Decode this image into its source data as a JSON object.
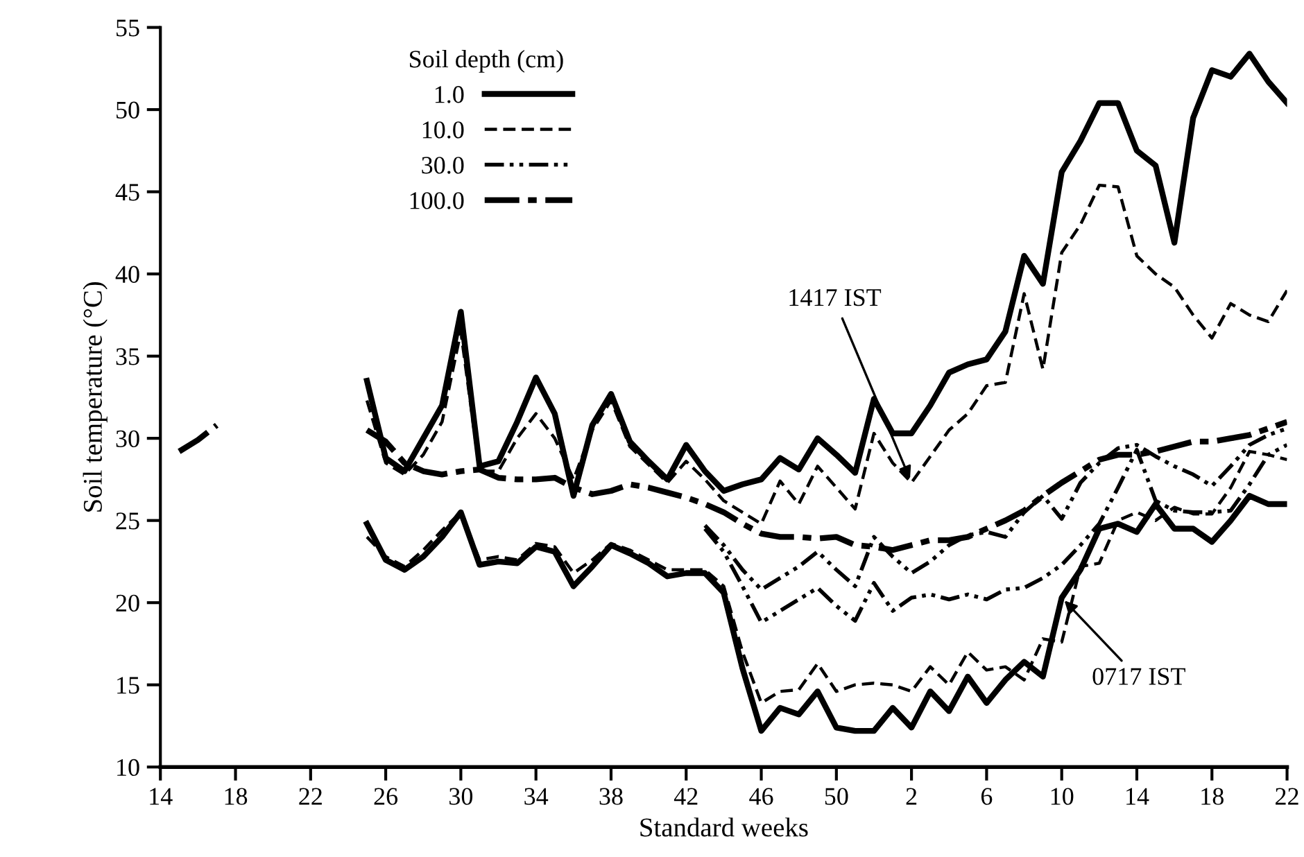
{
  "chart_data": {
    "type": "line",
    "xlabel": "Standard weeks",
    "ylabel": "Soil temperature (°C)",
    "legend_title": "Soil depth (cm)",
    "categories": [
      "14",
      null,
      null,
      null,
      "18",
      null,
      null,
      null,
      "22",
      null,
      null,
      null,
      "26",
      null,
      null,
      null,
      "30",
      null,
      null,
      null,
      "34",
      null,
      null,
      null,
      "38",
      null,
      null,
      null,
      "42",
      null,
      null,
      null,
      "46",
      null,
      null,
      null,
      "50",
      null,
      null,
      null,
      "2",
      null,
      null,
      null,
      "6",
      null,
      null,
      null,
      "10",
      null,
      null,
      null,
      "14",
      null,
      null,
      null,
      "18",
      null,
      null,
      null,
      "22"
    ],
    "ylim": [
      10,
      55
    ],
    "yticks": [
      10,
      15,
      20,
      25,
      30,
      35,
      40,
      45,
      50,
      55
    ],
    "grid": false,
    "legend": "top left",
    "marker": "none",
    "series": [
      {
        "name": "1.0",
        "color": "#000000",
        "line_style": "solid",
        "values": [
          null,
          null,
          null,
          null,
          null,
          null,
          null,
          null,
          null,
          null,
          null,
          33.5,
          28.8,
          28,
          30,
          32,
          37.7,
          28.3,
          28.6,
          31,
          33.7,
          31.5,
          26.5,
          30.8,
          32.7,
          29.8,
          28.6,
          27.5,
          29.6,
          28,
          26.8,
          27.2,
          27.5,
          28.8,
          28.1,
          30,
          29,
          27.9,
          32.4,
          30.3,
          30.3,
          32,
          34,
          34.5,
          34.8,
          36.5,
          41.1,
          39.4,
          46.2,
          48.1,
          50.4,
          50.4,
          47.5,
          46.6,
          41.9,
          49.5,
          52.4,
          52.0,
          53.4,
          51.7,
          50.4
        ]
      },
      {
        "name": "10.0",
        "color": "#000000",
        "line_style": "dashed",
        "values": [
          null,
          null,
          null,
          null,
          null,
          null,
          null,
          null,
          null,
          null,
          null,
          32.3,
          28.5,
          27.8,
          29,
          31,
          36.5,
          28,
          28,
          30,
          31.5,
          30,
          27.5,
          30.5,
          32.3,
          29.5,
          28.4,
          27.3,
          28.6,
          27.5,
          26.2,
          25.5,
          24.8,
          27.4,
          26,
          28.3,
          27,
          25.7,
          30.3,
          28.5,
          27.3,
          28.9,
          30.5,
          31.5,
          33.2,
          33.4,
          38.8,
          34.2,
          41.3,
          43,
          45.4,
          45.3,
          41.1,
          40,
          39.2,
          37.5,
          36.1,
          38.2,
          37.5,
          37.1,
          39
        ]
      },
      {
        "name": "30.0",
        "color": "#000000",
        "line_style": "dashdotdot",
        "values": [
          null,
          null,
          null,
          null,
          null,
          null,
          null,
          null,
          null,
          null,
          null,
          null,
          null,
          null,
          null,
          null,
          null,
          null,
          null,
          null,
          null,
          null,
          null,
          null,
          null,
          null,
          null,
          null,
          null,
          24.7,
          23.5,
          22,
          20.8,
          21.5,
          22.2,
          23.1,
          22,
          21,
          24,
          22.8,
          21.8,
          22.5,
          23.5,
          24.1,
          24.3,
          24,
          25.5,
          26.5,
          25.1,
          27.3,
          28.5,
          29.4,
          29.6,
          28.9,
          28.3,
          27.8,
          27.1,
          28.3,
          29.6,
          30.2,
          30.6
        ]
      },
      {
        "name": "100.0",
        "color": "#000000",
        "line_style": "dashdot",
        "values": [
          null,
          29.2,
          29.9,
          30.8,
          null,
          null,
          null,
          null,
          null,
          null,
          null,
          30.5,
          29.8,
          28.5,
          28,
          27.8,
          28,
          28.1,
          27.6,
          27.5,
          27.5,
          27.6,
          27,
          26.6,
          26.8,
          27.2,
          27,
          26.7,
          26.4,
          26,
          25.5,
          24.8,
          24.2,
          24,
          24,
          23.9,
          24,
          23.5,
          23.4,
          23.2,
          23.5,
          23.8,
          23.8,
          24,
          24.5,
          25,
          25.6,
          26.5,
          27.3,
          28,
          28.7,
          29,
          29,
          29.2,
          29.5,
          29.8,
          29.8,
          30,
          30.2,
          30.6,
          31
        ]
      },
      {
        "color": "#000000",
        "line_style": "solid",
        "values": [
          null,
          null,
          null,
          null,
          null,
          null,
          null,
          null,
          null,
          null,
          null,
          24.8,
          22.6,
          22,
          22.8,
          24,
          25.5,
          22.3,
          22.5,
          22.4,
          23.4,
          23.1,
          21,
          22.2,
          23.5,
          23,
          22.4,
          21.6,
          21.8,
          21.8,
          20.6,
          16,
          12.2,
          13.6,
          13.2,
          14.6,
          12.4,
          12.2,
          12.2,
          13.6,
          12.4,
          14.6,
          13.4,
          15.5,
          13.9,
          15.3,
          16.4,
          15.5,
          20.3,
          22,
          24.5,
          24.8,
          24.3,
          26,
          24.5,
          24.5,
          23.7,
          25,
          26.5,
          26,
          26
        ]
      },
      {
        "color": "#000000",
        "line_style": "dashed",
        "values": [
          null,
          null,
          null,
          null,
          null,
          null,
          null,
          null,
          null,
          null,
          null,
          24,
          22.8,
          22.2,
          23.2,
          24.4,
          25.5,
          22.6,
          22.8,
          22.6,
          23.6,
          23.4,
          21.8,
          22.6,
          23.6,
          23.2,
          22.6,
          22,
          22,
          22,
          21,
          17,
          13.9,
          14.6,
          14.7,
          16.3,
          14.6,
          15,
          15.1,
          15,
          14.6,
          16.1,
          15,
          17,
          15.9,
          16.1,
          15.3,
          17.8,
          17.6,
          22.2,
          22.4,
          25,
          25.5,
          25,
          25.8,
          25.4,
          25.4,
          27,
          29.2,
          29,
          28.7
        ]
      },
      {
        "color": "#000000",
        "line_style": "dashdotdot",
        "values": [
          null,
          null,
          null,
          null,
          null,
          null,
          null,
          null,
          null,
          null,
          null,
          null,
          null,
          null,
          null,
          null,
          null,
          null,
          null,
          null,
          null,
          null,
          null,
          null,
          null,
          null,
          null,
          null,
          null,
          24.5,
          23.1,
          21,
          18.8,
          19.5,
          20.2,
          20.9,
          19.8,
          18.9,
          21.2,
          19.5,
          20.3,
          20.5,
          20.2,
          20.5,
          20.2,
          20.8,
          20.9,
          21.5,
          22.3,
          23.5,
          24.8,
          27,
          29.3,
          26.2,
          25.6,
          25.5,
          25.5,
          25.6,
          27.2,
          29,
          29.6
        ]
      }
    ],
    "annotations": [
      {
        "text": "1417 IST",
        "x": "2",
        "y": 27.3
      },
      {
        "text": "0717 IST",
        "x": "10",
        "y": 20.3
      }
    ]
  }
}
